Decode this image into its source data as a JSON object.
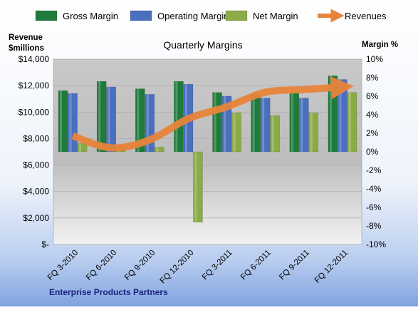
{
  "chart_data": {
    "type": "bar",
    "title": "Quarterly Margins",
    "footer": "Enterprise Products  Partners",
    "left_axis_label_line1": "Revenue",
    "left_axis_label_line2": "$millions",
    "right_axis_label": "Margin %",
    "categories": [
      "FQ 3-2010",
      "FQ 6-2010",
      "FQ 9-2010",
      "FQ 12-2010",
      "FQ 3-2011",
      "FQ 6-2011",
      "FQ 9-2011",
      "FQ 12-2011"
    ],
    "left_ticks": [
      "$14,000",
      "$12,000",
      "$10,000",
      "$8,000",
      "$6,000",
      "$4,000",
      "$2,000",
      "$-"
    ],
    "right_ticks": [
      "10%",
      "8%",
      "6%",
      "4%",
      "2%",
      "0%",
      "-2%",
      "-4%",
      "-6%",
      "-8%",
      "-10%"
    ],
    "ylim_left": [
      0,
      14000
    ],
    "ylim_right": [
      -10,
      10
    ],
    "series": [
      {
        "name": "Gross Margin",
        "axis": "right",
        "kind": "bar",
        "color": "#1e7b3c",
        "values": [
          6.6,
          7.6,
          6.8,
          7.6,
          6.4,
          6.2,
          6.4,
          8.2
        ]
      },
      {
        "name": "Operating Margin",
        "axis": "right",
        "kind": "bar",
        "color": "#4a6fbf",
        "values": [
          6.3,
          7.0,
          6.2,
          7.3,
          6.0,
          5.8,
          5.8,
          7.8
        ]
      },
      {
        "name": "Net Margin",
        "axis": "right",
        "kind": "bar",
        "color": "#8aab45",
        "values": [
          0.9,
          0.5,
          0.5,
          -7.6,
          4.2,
          3.9,
          4.2,
          6.4
        ]
      },
      {
        "name": "Revenues",
        "axis": "left",
        "kind": "line",
        "color": "#e8843a",
        "values": [
          8200,
          7300,
          7900,
          9500,
          10400,
          11500,
          11700,
          11900
        ]
      }
    ],
    "grid": true,
    "legend_position": "top"
  }
}
